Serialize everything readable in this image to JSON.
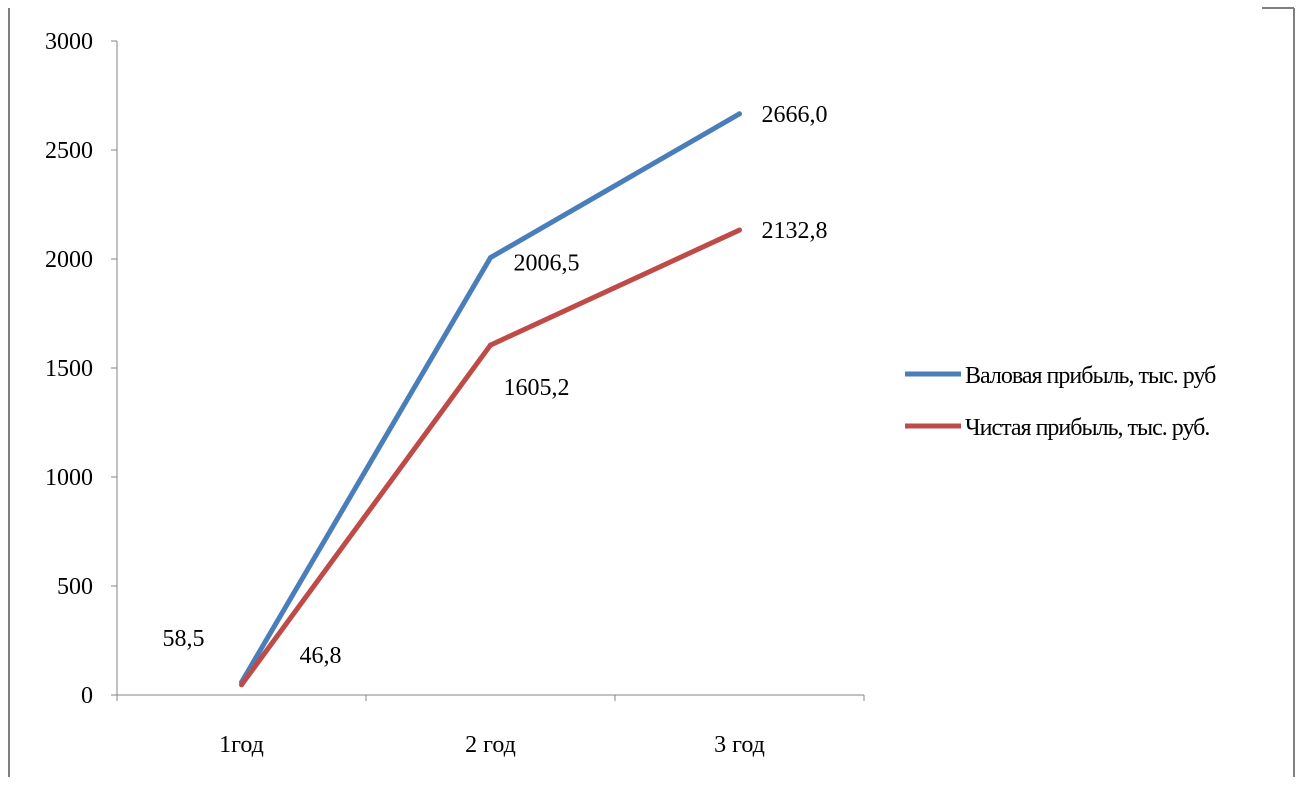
{
  "chart_data": {
    "type": "line",
    "categories": [
      "1год",
      "2 год",
      "3 год"
    ],
    "series": [
      {
        "name": "Валовая прибыль, тыс. руб",
        "color": "#4a7ebb",
        "values": [
          58.5,
          2006.5,
          2666.0
        ],
        "data_labels": [
          "58,5",
          "2006,5",
          "2666,0"
        ]
      },
      {
        "name": "Чистая прибыль, тыс. руб.",
        "color": "#be4b48",
        "values": [
          46.8,
          1605.2,
          2132.8
        ],
        "data_labels": [
          "46,8",
          "1605,2",
          "2132,8"
        ]
      }
    ],
    "ylim": [
      0,
      3000
    ],
    "y_ticks": [
      0,
      500,
      1000,
      1500,
      2000,
      2500,
      3000
    ],
    "grid": false,
    "legend_position": "right"
  }
}
